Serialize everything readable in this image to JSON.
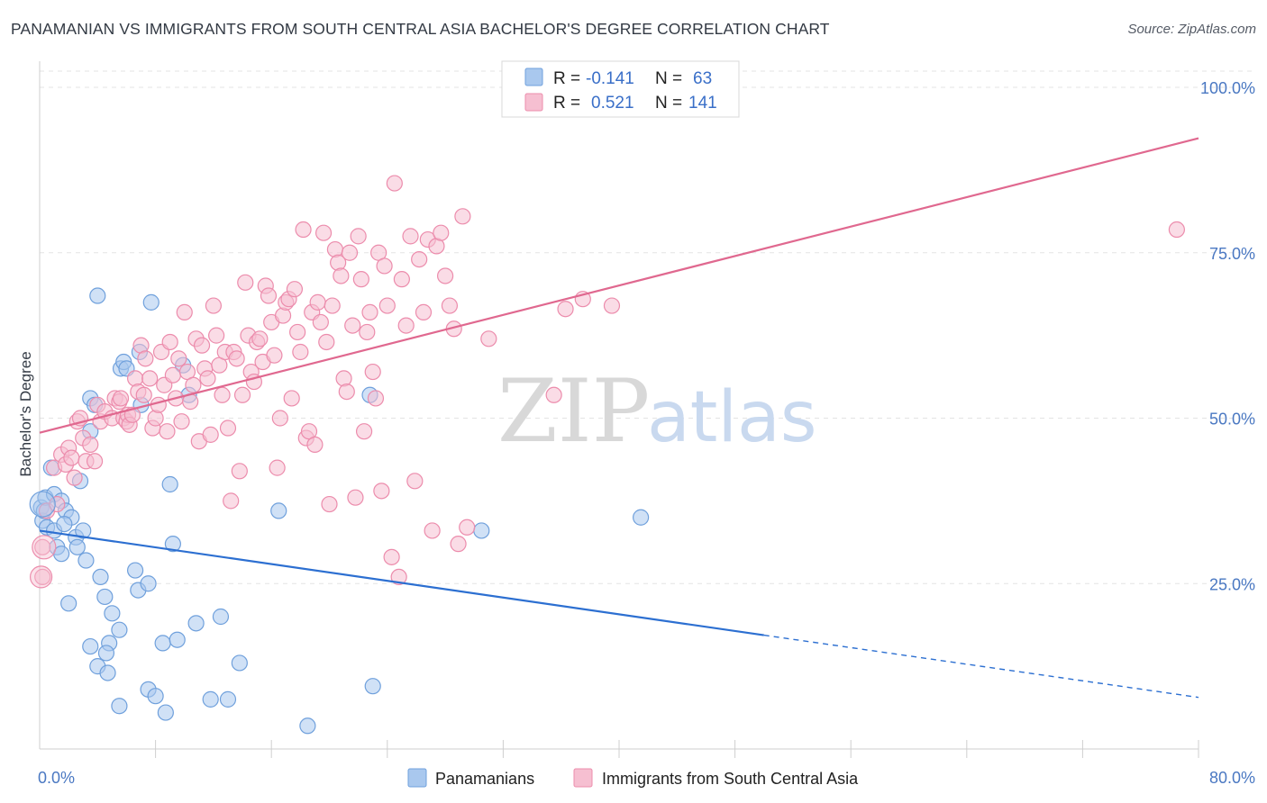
{
  "title": "PANAMANIAN VS IMMIGRANTS FROM SOUTH CENTRAL ASIA BACHELOR'S DEGREE CORRELATION CHART",
  "source": "Source: ZipAtlas.com",
  "watermark": {
    "zip": "ZIP",
    "atlas": "atlas"
  },
  "colors": {
    "blue": "#6fa0dc",
    "blue_fill": "#a9c8ee",
    "blue_line": "#2c6fd1",
    "pink": "#ec8cac",
    "pink_fill": "#f6bfd1",
    "pink_line": "#e0688f"
  },
  "legend": {
    "r_label": "R =",
    "n_label": "N =",
    "rows": [
      {
        "r": "-0.141",
        "n": "63"
      },
      {
        "r": "0.521",
        "n": "141"
      }
    ]
  },
  "bottom_legend": [
    "Panamanians",
    "Immigrants from South Central Asia"
  ],
  "chart_data": {
    "type": "scatter",
    "title": "PANAMANIAN VS IMMIGRANTS FROM SOUTH CENTRAL ASIA BACHELOR'S DEGREE CORRELATION CHART",
    "ylabel": "Bachelor's Degree",
    "xlim": [
      0,
      80
    ],
    "ylim": [
      0,
      100
    ],
    "x_ticks": [
      {
        "value": 0,
        "label": "0.0%"
      },
      {
        "value": 80,
        "label": "80.0%"
      }
    ],
    "y_ticks": [
      {
        "value": 25,
        "label": "25.0%"
      },
      {
        "value": 50,
        "label": "50.0%"
      },
      {
        "value": 75,
        "label": "75.0%"
      },
      {
        "value": 100,
        "label": "100.0%"
      }
    ],
    "grid": true,
    "legend_position": "top-center",
    "series": [
      {
        "name": "Panamanians",
        "r": -0.141,
        "n": 63,
        "trend": {
          "x0": 0,
          "y0": 33,
          "x1": 50,
          "y1": 17.2,
          "dash_to_x": 80,
          "dash_to_y": 7.8
        },
        "points": [
          [
            0.1,
            36.5
          ],
          [
            0.2,
            34.5
          ],
          [
            0.3,
            36
          ],
          [
            0.4,
            38
          ],
          [
            0.5,
            33.5
          ],
          [
            0.8,
            42.5
          ],
          [
            1.0,
            38.5
          ],
          [
            1.0,
            33
          ],
          [
            1.2,
            30.5
          ],
          [
            1.5,
            37.5
          ],
          [
            1.5,
            29.5
          ],
          [
            1.8,
            36
          ],
          [
            2.2,
            35
          ],
          [
            2.5,
            32
          ],
          [
            2.0,
            22
          ],
          [
            2.8,
            40.5
          ],
          [
            3.0,
            33
          ],
          [
            3.2,
            28.5
          ],
          [
            3.5,
            48
          ],
          [
            3.5,
            53
          ],
          [
            3.8,
            52
          ],
          [
            4.0,
            68.5
          ],
          [
            4.2,
            26
          ],
          [
            4.5,
            23
          ],
          [
            4.8,
            16
          ],
          [
            3.5,
            15.5
          ],
          [
            4.0,
            12.5
          ],
          [
            4.7,
            11.5
          ],
          [
            4.6,
            14.5
          ],
          [
            5.0,
            20.5
          ],
          [
            5.5,
            18
          ],
          [
            5.6,
            57.5
          ],
          [
            5.8,
            58.5
          ],
          [
            6.0,
            57.5
          ],
          [
            6.6,
            27
          ],
          [
            6.8,
            24
          ],
          [
            6.9,
            60
          ],
          [
            7.5,
            25
          ],
          [
            7.0,
            52
          ],
          [
            7.5,
            9
          ],
          [
            8.0,
            8
          ],
          [
            7.7,
            67.5
          ],
          [
            8.5,
            16
          ],
          [
            8.7,
            5.5
          ],
          [
            9.0,
            40
          ],
          [
            9.2,
            31
          ],
          [
            9.5,
            16.5
          ],
          [
            9.9,
            58
          ],
          [
            10.3,
            53.5
          ],
          [
            10.8,
            19
          ],
          [
            11.8,
            7.5
          ],
          [
            12.5,
            20
          ],
          [
            13.0,
            7.5
          ],
          [
            13.8,
            13
          ],
          [
            16.5,
            36
          ],
          [
            18.5,
            3.5
          ],
          [
            5.5,
            6.5
          ],
          [
            22.8,
            53.5
          ],
          [
            23.0,
            9.5
          ],
          [
            30.5,
            33
          ],
          [
            41.5,
            35
          ],
          [
            1.7,
            34
          ],
          [
            2.6,
            30.5
          ]
        ]
      },
      {
        "name": "Immigrants from South Central Asia",
        "r": 0.521,
        "n": 141,
        "trend": {
          "x0": 0,
          "y0": 47.8,
          "x1": 80,
          "y1": 92.3
        },
        "points": [
          [
            0.2,
            30.5
          ],
          [
            0.2,
            26
          ],
          [
            0.5,
            36
          ],
          [
            1.0,
            42.5
          ],
          [
            1.2,
            37
          ],
          [
            1.5,
            44.5
          ],
          [
            1.8,
            43
          ],
          [
            2.0,
            45.5
          ],
          [
            2.2,
            44
          ],
          [
            2.4,
            41
          ],
          [
            2.6,
            49.5
          ],
          [
            2.8,
            50
          ],
          [
            3.0,
            47
          ],
          [
            3.2,
            43.5
          ],
          [
            3.5,
            46
          ],
          [
            3.8,
            43.5
          ],
          [
            4.0,
            52
          ],
          [
            4.2,
            49.5
          ],
          [
            4.5,
            51
          ],
          [
            5.0,
            50
          ],
          [
            5.2,
            53
          ],
          [
            5.5,
            52.5
          ],
          [
            5.6,
            53
          ],
          [
            5.8,
            50
          ],
          [
            6.0,
            49.5
          ],
          [
            6.1,
            50.5
          ],
          [
            6.2,
            49
          ],
          [
            6.4,
            50.5
          ],
          [
            6.6,
            56
          ],
          [
            6.8,
            54
          ],
          [
            7.0,
            61
          ],
          [
            7.2,
            53.5
          ],
          [
            7.3,
            59
          ],
          [
            7.6,
            56
          ],
          [
            7.8,
            48.5
          ],
          [
            8.0,
            50
          ],
          [
            8.2,
            52
          ],
          [
            8.4,
            60
          ],
          [
            8.6,
            55
          ],
          [
            8.8,
            48
          ],
          [
            9.0,
            61.5
          ],
          [
            9.2,
            56.5
          ],
          [
            9.4,
            53
          ],
          [
            9.6,
            59
          ],
          [
            9.8,
            49.5
          ],
          [
            10.0,
            66
          ],
          [
            10.2,
            57
          ],
          [
            10.4,
            52.5
          ],
          [
            10.6,
            55
          ],
          [
            10.8,
            62
          ],
          [
            11.0,
            46.5
          ],
          [
            11.2,
            61
          ],
          [
            11.4,
            57.5
          ],
          [
            11.6,
            56
          ],
          [
            11.8,
            47.5
          ],
          [
            12.0,
            67
          ],
          [
            12.2,
            62.5
          ],
          [
            12.4,
            58
          ],
          [
            12.6,
            53.5
          ],
          [
            12.8,
            60
          ],
          [
            13.0,
            48.5
          ],
          [
            13.2,
            37.5
          ],
          [
            13.4,
            60
          ],
          [
            13.6,
            59
          ],
          [
            13.8,
            42
          ],
          [
            14.0,
            53.5
          ],
          [
            14.2,
            70.5
          ],
          [
            14.4,
            62.5
          ],
          [
            14.6,
            57
          ],
          [
            14.8,
            55.5
          ],
          [
            15.0,
            61.5
          ],
          [
            15.2,
            62
          ],
          [
            15.4,
            58.5
          ],
          [
            15.6,
            70
          ],
          [
            15.8,
            68.5
          ],
          [
            16.0,
            64.5
          ],
          [
            16.2,
            59.5
          ],
          [
            16.4,
            42.5
          ],
          [
            16.6,
            50
          ],
          [
            16.8,
            65.5
          ],
          [
            17.0,
            67.5
          ],
          [
            17.2,
            68
          ],
          [
            17.4,
            53
          ],
          [
            17.6,
            69.5
          ],
          [
            17.8,
            63
          ],
          [
            18.0,
            60
          ],
          [
            18.2,
            78.5
          ],
          [
            18.4,
            47
          ],
          [
            18.6,
            48
          ],
          [
            18.8,
            66
          ],
          [
            19.0,
            46
          ],
          [
            19.2,
            67.5
          ],
          [
            19.4,
            64.5
          ],
          [
            19.6,
            78
          ],
          [
            19.8,
            61.5
          ],
          [
            20.0,
            37
          ],
          [
            20.2,
            67
          ],
          [
            20.4,
            75.5
          ],
          [
            20.6,
            73.5
          ],
          [
            20.8,
            71.5
          ],
          [
            21.0,
            56
          ],
          [
            21.2,
            54
          ],
          [
            21.4,
            75
          ],
          [
            21.6,
            64
          ],
          [
            21.8,
            38
          ],
          [
            22.0,
            77.5
          ],
          [
            22.2,
            71
          ],
          [
            22.4,
            48
          ],
          [
            22.6,
            63
          ],
          [
            22.8,
            66
          ],
          [
            23.0,
            57
          ],
          [
            23.2,
            53
          ],
          [
            23.4,
            75
          ],
          [
            23.6,
            39
          ],
          [
            23.8,
            73
          ],
          [
            24.0,
            67
          ],
          [
            24.3,
            29
          ],
          [
            24.5,
            85.5
          ],
          [
            24.8,
            26
          ],
          [
            25.0,
            71
          ],
          [
            25.3,
            64
          ],
          [
            25.6,
            77.5
          ],
          [
            25.9,
            40.5
          ],
          [
            26.2,
            74
          ],
          [
            26.5,
            66
          ],
          [
            26.8,
            77
          ],
          [
            27.1,
            33
          ],
          [
            27.4,
            76
          ],
          [
            27.7,
            78
          ],
          [
            28.0,
            71.5
          ],
          [
            28.3,
            67
          ],
          [
            28.6,
            63.5
          ],
          [
            28.9,
            31
          ],
          [
            29.2,
            80.5
          ],
          [
            29.5,
            33.5
          ],
          [
            37.5,
            68
          ],
          [
            39.5,
            67
          ],
          [
            35.5,
            53.5
          ],
          [
            36.3,
            66.5
          ],
          [
            78.5,
            78.5
          ],
          [
            31.0,
            62
          ]
        ]
      }
    ]
  }
}
